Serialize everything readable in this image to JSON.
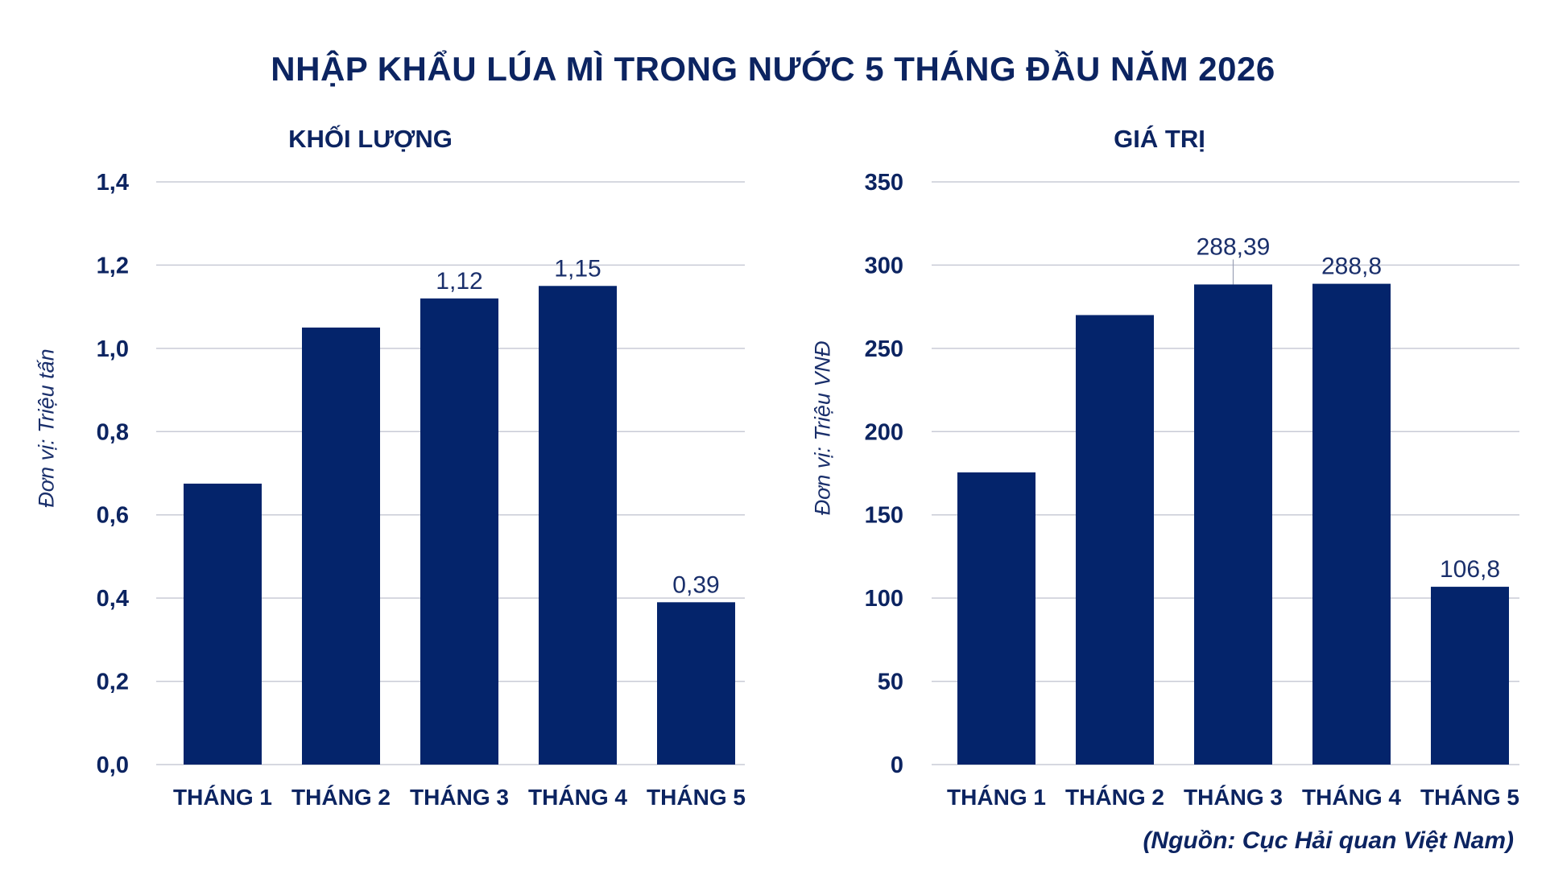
{
  "title": "NHẬP KHẨU LÚA MÌ TRONG NƯỚC 5 THÁNG ĐẦU NĂM 2026",
  "source": "(Nguồn: Cục Hải quan Việt Nam)",
  "colors": {
    "bar": "#04246b",
    "text": "#0c2461",
    "grid": "#c9cbd6"
  },
  "chart_data": [
    {
      "type": "bar",
      "title": "KHỐI LƯỢNG",
      "ylabel": "Đơn vị: Triệu tấn",
      "categories": [
        "THÁNG 1",
        "THÁNG 2",
        "THÁNG 3",
        "THÁNG 4",
        "THÁNG 5"
      ],
      "values": [
        0.675,
        1.05,
        1.12,
        1.15,
        0.39
      ],
      "data_labels": [
        "",
        "",
        "1,12",
        "1,15",
        "0,39"
      ],
      "ylim": [
        0,
        1.4
      ],
      "yticks": [
        0,
        0.2,
        0.4,
        0.6,
        0.8,
        1.0,
        1.2,
        1.4
      ],
      "ytick_labels": [
        "0,0",
        "0,2",
        "0,4",
        "0,6",
        "0,8",
        "1,0",
        "1,2",
        "1,4"
      ],
      "grid": true
    },
    {
      "type": "bar",
      "title": "GIÁ TRỊ",
      "ylabel": "Đơn vị: Triệu VNĐ",
      "categories": [
        "THÁNG 1",
        "THÁNG 2",
        "THÁNG 3",
        "THÁNG 4",
        "THÁNG 5"
      ],
      "values": [
        175.5,
        270,
        288.39,
        288.8,
        106.8
      ],
      "data_labels": [
        "",
        "",
        "288,39",
        "288,8",
        "106,8"
      ],
      "ylim": [
        0,
        350
      ],
      "yticks": [
        0,
        50,
        100,
        150,
        200,
        250,
        300,
        350
      ],
      "ytick_labels": [
        "0",
        "50",
        "100",
        "150",
        "200",
        "250",
        "300",
        "350"
      ],
      "grid": true
    }
  ]
}
